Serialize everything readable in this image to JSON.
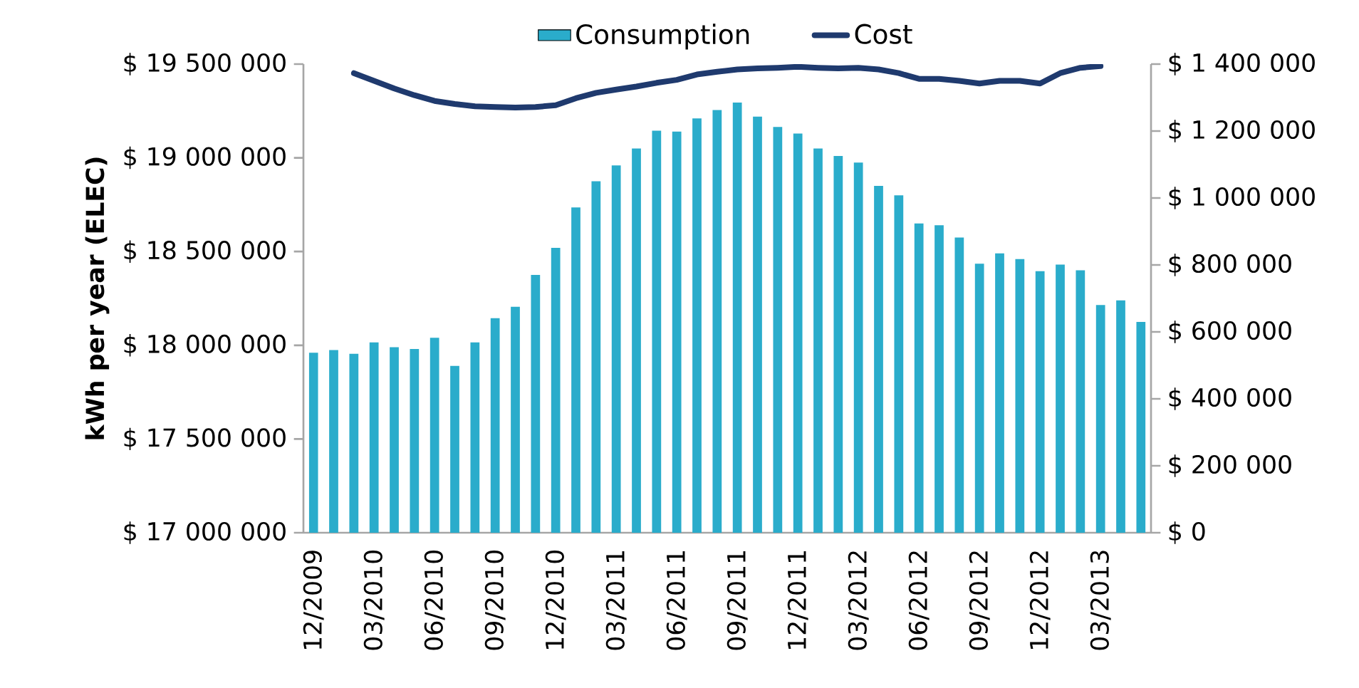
{
  "chart_data": {
    "type": "bar",
    "ylabel": "kWh per year (ELEC)",
    "categories": [
      "12/2009",
      null,
      null,
      "03/2010",
      null,
      null,
      "06/2010",
      null,
      null,
      "09/2010",
      null,
      null,
      "12/2010",
      null,
      null,
      "03/2011",
      null,
      null,
      "06/2011",
      null,
      null,
      "09/2011",
      null,
      null,
      "12/2011",
      null,
      null,
      "03/2012",
      null,
      null,
      "06/2012",
      null,
      null,
      "09/2012",
      null,
      null,
      "12/2012",
      null,
      null,
      "03/2013",
      null,
      null
    ],
    "series": [
      {
        "name": "Consumption",
        "color": "#2aaccb",
        "values": [
          17960000,
          17975000,
          17955000,
          18015000,
          17990000,
          17980000,
          18040000,
          17890000,
          18015000,
          18145000,
          18205000,
          18375000,
          18520000,
          18735000,
          18875000,
          18960000,
          19050000,
          19145000,
          19140000,
          19210000,
          19255000,
          19295000,
          19220000,
          19165000,
          19130000,
          19050000,
          19010000,
          18975000,
          18850000,
          18800000,
          18650000,
          18640000,
          18575000,
          18435000,
          18490000,
          18460000,
          18395000,
          18430000,
          18400000,
          18215000,
          18240000,
          18125000
        ]
      },
      {
        "name": "Cost",
        "type": "line",
        "axis": "y2",
        "color": "#1f3a6e",
        "values": [
          null,
          null,
          1373000,
          1350000,
          1327000,
          1307000,
          1290000,
          1281000,
          1274000,
          1272000,
          1270000,
          1272000,
          1277000,
          1298000,
          1314000,
          1324000,
          1333000,
          1344000,
          1353000,
          1369000,
          1377000,
          1384000,
          1387000,
          1389000,
          1392000,
          1389000,
          1387000,
          1389000,
          1384000,
          1373000,
          1356000,
          1356000,
          1350000,
          1342000,
          1350000,
          1350000,
          1342000,
          1373000,
          1389000,
          1394000,
          null,
          null
        ]
      }
    ],
    "ylim": [
      17000000,
      19500000
    ],
    "yticks": [
      {
        "value": 17000000,
        "label": "$ 17 000 000"
      },
      {
        "value": 17500000,
        "label": "$ 17 500 000"
      },
      {
        "value": 18000000,
        "label": "$ 18 000 000"
      },
      {
        "value": 18500000,
        "label": "$ 18 500 000"
      },
      {
        "value": 19000000,
        "label": "$ 19 000 000"
      },
      {
        "value": 19500000,
        "label": "$ 19 500 000"
      }
    ],
    "y2lim": [
      0,
      1400000
    ],
    "y2ticks": [
      {
        "value": 0,
        "label": "$ 0"
      },
      {
        "value": 200000,
        "label": "$ 200 000"
      },
      {
        "value": 400000,
        "label": "$ 400 000"
      },
      {
        "value": 600000,
        "label": "$ 600 000"
      },
      {
        "value": 800000,
        "label": "$ 800 000"
      },
      {
        "value": 1000000,
        "label": "$ 1 000 000"
      },
      {
        "value": 1200000,
        "label": "$ 1 200 000"
      },
      {
        "value": 1400000,
        "label": "$ 1 400 000"
      }
    ],
    "legend": "top"
  }
}
